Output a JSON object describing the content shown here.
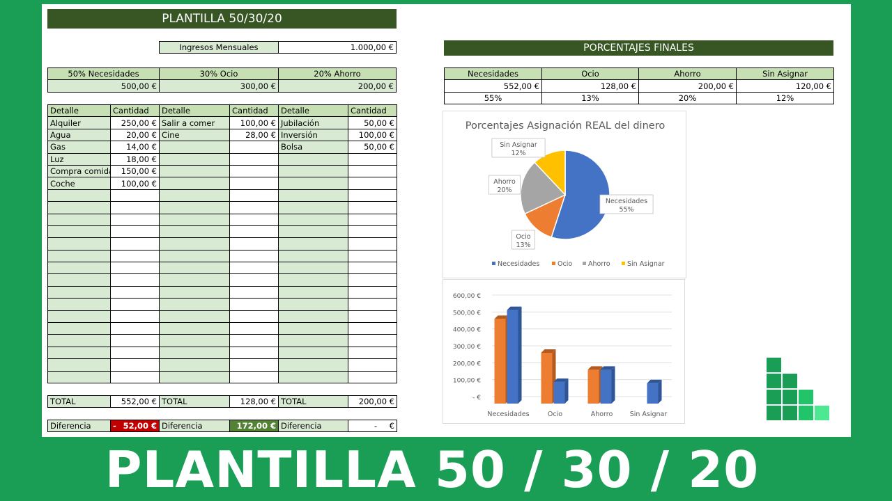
{
  "title": "PLANTILLA 50/30/20",
  "ingresos": {
    "label": "Ingresos Mensuales",
    "value": "1.000,00 €"
  },
  "categories": [
    {
      "label": "50% Necesidades",
      "value": "500,00 €"
    },
    {
      "label": "30% Ocio",
      "value": "300,00 €"
    },
    {
      "label": "20% Ahorro",
      "value": "200,00 €"
    }
  ],
  "detail": {
    "header_detalle": "Detalle",
    "header_cantidad": "Cantidad",
    "necesidades": [
      [
        "Alquiler",
        "250,00 €"
      ],
      [
        "Agua",
        "20,00 €"
      ],
      [
        "Gas",
        "14,00 €"
      ],
      [
        "Luz",
        "18,00 €"
      ],
      [
        "Compra comida",
        "150,00 €"
      ],
      [
        "Coche",
        "100,00 €"
      ]
    ],
    "ocio": [
      [
        "Salir a comer",
        "100,00 €"
      ],
      [
        "Cine",
        "28,00 €"
      ]
    ],
    "ahorro": [
      [
        "Jubilación",
        "50,00 €"
      ],
      [
        "Inversión",
        "100,00 €"
      ],
      [
        "Bolsa",
        "50,00 €"
      ]
    ]
  },
  "totals": {
    "label": "TOTAL",
    "necesidades": "552,00 €",
    "ocio": "128,00 €",
    "ahorro": "200,00 €"
  },
  "diferencia": {
    "label": "Diferencia",
    "necesidades_sign": "-",
    "necesidades": "52,00 €",
    "ocio": "172,00 €",
    "ahorro_sign": "-",
    "ahorro": "€"
  },
  "final": {
    "title": "PORCENTAJES FINALES",
    "headers": [
      "Necesidades",
      "Ocio",
      "Ahorro",
      "Sin Asignar"
    ],
    "amounts": [
      "552,00 €",
      "128,00 €",
      "200,00 €",
      "120,00 €"
    ],
    "percents": [
      "55%",
      "13%",
      "20%",
      "12%"
    ]
  },
  "chart_data": [
    {
      "type": "pie",
      "title": "Porcentajes Asignación REAL del dinero",
      "categories": [
        "Necesidades",
        "Ocio",
        "Ahorro",
        "Sin Asignar"
      ],
      "values": [
        55,
        13,
        20,
        12
      ],
      "labels": [
        "55%",
        "13%",
        "20%",
        "12%"
      ],
      "colors": [
        "#4472c4",
        "#ed7d31",
        "#a5a5a5",
        "#ffc000"
      ],
      "legend": "bottom"
    },
    {
      "type": "bar",
      "categories": [
        "Necesidades",
        "Ocio",
        "Ahorro",
        "Sin Asignar"
      ],
      "series": [
        {
          "values": [
            500,
            300,
            200,
            0
          ],
          "color": "#ed7d31"
        },
        {
          "values": [
            552,
            128,
            200,
            120
          ],
          "color": "#4472c4"
        }
      ],
      "ylim": [
        0,
        600
      ],
      "yticks": [
        "-  €",
        "100,00 €",
        "200,00 €",
        "300,00 €",
        "400,00 €",
        "500,00 €",
        "600,00 €"
      ],
      "grid": true
    }
  ],
  "footer_title": "PLANTILLA 50 / 30 / 20"
}
